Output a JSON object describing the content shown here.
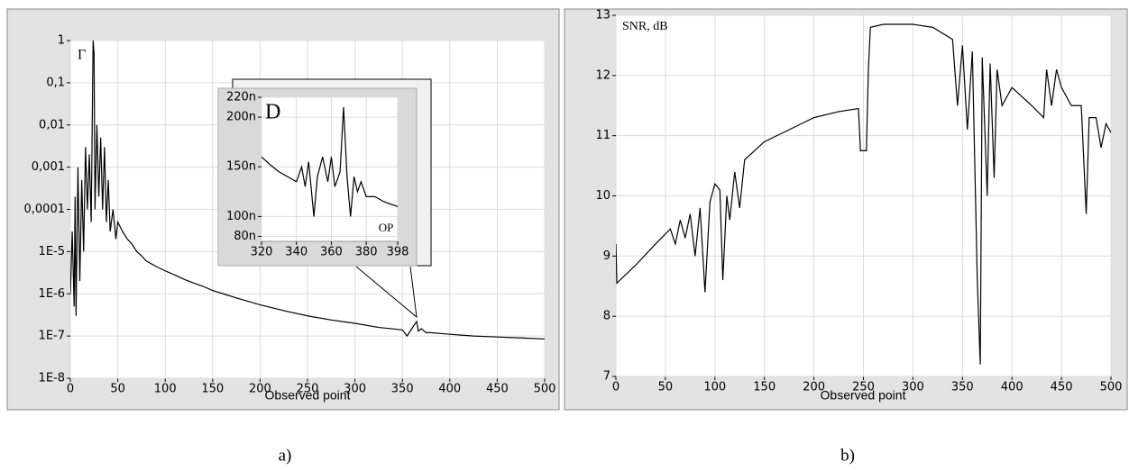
{
  "chart_data": [
    {
      "type": "line",
      "yscale": "log",
      "xlabel": "Observed point",
      "ylabel": "Γ",
      "caption": "a)",
      "color": "#000000",
      "grid": true,
      "xlim": [
        0,
        500
      ],
      "xticks": [
        0,
        50,
        100,
        150,
        200,
        250,
        300,
        350,
        400,
        450,
        500
      ],
      "ylim": [
        1e-08,
        1
      ],
      "yticks": [
        1,
        {
          "value": 0.1,
          "label": "0,1"
        },
        {
          "value": 0.01,
          "label": "0,01"
        },
        {
          "value": 0.001,
          "label": "0,001"
        },
        {
          "value": 0.0001,
          "label": "0,0001"
        },
        {
          "value": 1e-05,
          "label": "1E-5"
        },
        {
          "value": 1e-06,
          "label": "1E-6"
        },
        {
          "value": 1e-07,
          "label": "1E-7"
        },
        {
          "value": 1e-08,
          "label": "1E-8"
        }
      ],
      "x": [
        0,
        2,
        4,
        5,
        6,
        8,
        10,
        12,
        14,
        16,
        18,
        20,
        22,
        24,
        25,
        26,
        28,
        30,
        32,
        34,
        36,
        38,
        40,
        42,
        45,
        48,
        50,
        55,
        60,
        65,
        70,
        75,
        80,
        90,
        100,
        110,
        120,
        130,
        140,
        150,
        175,
        200,
        225,
        250,
        275,
        300,
        325,
        350,
        355,
        360,
        365,
        367,
        370,
        375,
        380,
        400,
        425,
        450,
        475,
        500
      ],
      "values": [
        1e-06,
        3e-05,
        5e-07,
        0.0002,
        3e-07,
        0.001,
        2e-06,
        0.0005,
        1e-05,
        0.003,
        0.0001,
        0.002,
        5e-05,
        1,
        0.5,
        0.0001,
        0.01,
        0.0002,
        0.005,
        0.0001,
        0.003,
        5e-05,
        0.0005,
        3e-05,
        0.0001,
        2e-05,
        5e-05,
        3e-05,
        2e-05,
        1.5e-05,
        1e-05,
        8e-06,
        6e-06,
        4.5e-06,
        3.5e-06,
        2.8e-06,
        2.2e-06,
        1.8e-06,
        1.5e-06,
        1.2e-06,
        8e-07,
        5.5e-07,
        4e-07,
        3e-07,
        2.4e-07,
        2e-07,
        1.6e-07,
        1.4e-07,
        1e-07,
        1.5e-07,
        2.2e-07,
        1.3e-07,
        1.5e-07,
        1.2e-07,
        1.2e-07,
        1.1e-07,
        1e-07,
        9.5e-08,
        9e-08,
        8.5e-08
      ]
    },
    {
      "type": "line",
      "xlabel": "OP",
      "ylabel": "D",
      "color": "#000000",
      "grid": true,
      "xlim": [
        320,
        398
      ],
      "xticks": [
        320,
        340,
        360,
        380,
        398
      ],
      "ylim": [
        7.5e-08,
        2.2e-07
      ],
      "yticks": [
        {
          "value": 8e-08,
          "label": "80n"
        },
        {
          "value": 1e-07,
          "label": "100n"
        },
        {
          "value": 1.5e-07,
          "label": "150n"
        },
        {
          "value": 2e-07,
          "label": "200n"
        },
        {
          "value": 2.2e-07,
          "label": "220n"
        }
      ],
      "x": [
        320,
        325,
        330,
        335,
        340,
        343,
        345,
        347,
        350,
        352,
        355,
        358,
        360,
        362,
        365,
        367,
        369,
        371,
        373,
        375,
        377,
        380,
        385,
        390,
        398
      ],
      "values": [
        1.6e-07,
        1.52e-07,
        1.45e-07,
        1.4e-07,
        1.35e-07,
        1.5e-07,
        1.3e-07,
        1.55e-07,
        1e-07,
        1.4e-07,
        1.6e-07,
        1.35e-07,
        1.6e-07,
        1.3e-07,
        1.45e-07,
        2.1e-07,
        1.4e-07,
        1e-07,
        1.4e-07,
        1.25e-07,
        1.35e-07,
        1.2e-07,
        1.2e-07,
        1.15e-07,
        1.1e-07
      ]
    },
    {
      "type": "line",
      "xlabel": "Observed point",
      "ylabel": "SNR, dB",
      "caption": "b)",
      "color": "#000000",
      "grid": true,
      "xlim": [
        0,
        500
      ],
      "xticks": [
        0,
        50,
        100,
        150,
        200,
        250,
        300,
        350,
        400,
        450,
        500
      ],
      "ylim": [
        7,
        13
      ],
      "yticks": [
        7,
        8,
        9,
        10,
        11,
        12,
        13
      ],
      "x": [
        0,
        1,
        20,
        40,
        55,
        60,
        65,
        70,
        75,
        80,
        85,
        90,
        95,
        100,
        105,
        108,
        112,
        115,
        120,
        125,
        130,
        150,
        175,
        200,
        225,
        245,
        247,
        253,
        255,
        257,
        270,
        300,
        320,
        340,
        345,
        350,
        355,
        360,
        365,
        368,
        370,
        375,
        378,
        382,
        385,
        390,
        400,
        420,
        432,
        435,
        440,
        445,
        450,
        460,
        470,
        475,
        478,
        485,
        490,
        495,
        500
      ],
      "values": [
        9.2,
        8.55,
        8.85,
        9.2,
        9.45,
        9.2,
        9.6,
        9.3,
        9.7,
        9.0,
        9.8,
        8.4,
        9.9,
        10.2,
        10.1,
        8.6,
        10.0,
        9.6,
        10.4,
        9.8,
        10.6,
        10.9,
        11.1,
        11.3,
        11.4,
        11.45,
        10.75,
        10.75,
        12.1,
        12.8,
        12.85,
        12.85,
        12.8,
        12.6,
        11.5,
        12.5,
        11.1,
        12.4,
        8.6,
        7.2,
        12.3,
        10.0,
        12.2,
        10.3,
        12.1,
        11.5,
        11.8,
        11.5,
        11.3,
        12.1,
        11.5,
        12.1,
        11.8,
        11.5,
        11.5,
        9.7,
        11.3,
        11.3,
        10.8,
        11.2,
        11.05
      ]
    }
  ]
}
